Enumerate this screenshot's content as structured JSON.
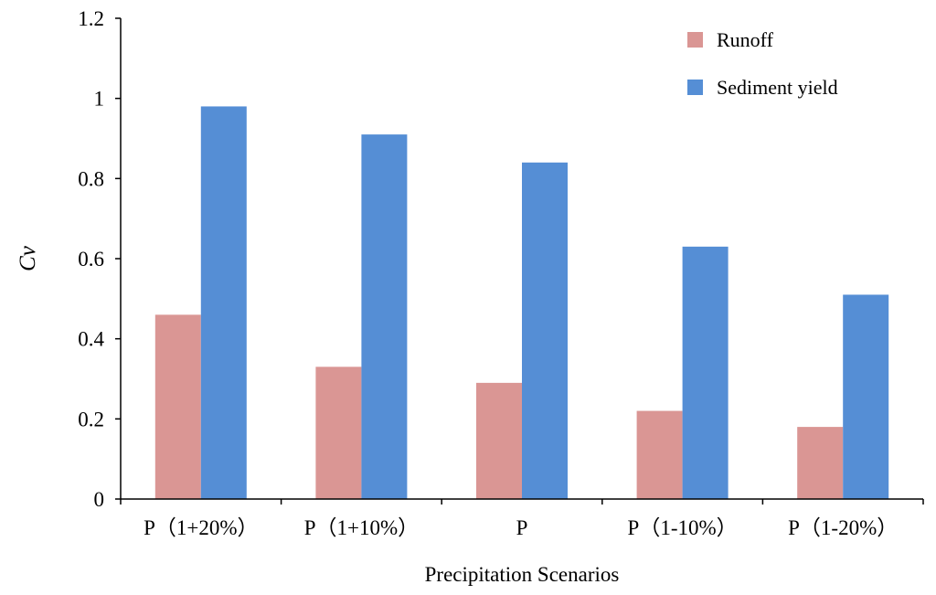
{
  "chart_data": {
    "type": "bar",
    "title": "",
    "xlabel": "Precipitation Scenarios",
    "ylabel": "Cv",
    "ylim": [
      0,
      1.2
    ],
    "yticks": [
      0,
      0.2,
      0.4,
      0.6,
      0.8,
      1,
      1.2
    ],
    "ytick_labels": [
      "0",
      "0.2",
      "0.4",
      "0.6",
      "0.8",
      "1",
      "1.2"
    ],
    "categories": [
      "P（1+20%）",
      "P（1+10%）",
      "P",
      "P（1-10%）",
      "P（1-20%）"
    ],
    "series": [
      {
        "name": "Runoff",
        "color": "#da9694",
        "values": [
          0.46,
          0.33,
          0.29,
          0.22,
          0.18
        ]
      },
      {
        "name": "Sediment yield",
        "color": "#558ed5",
        "values": [
          0.98,
          0.91,
          0.84,
          0.63,
          0.51
        ]
      }
    ],
    "legend_position": "top-right",
    "grid": false
  }
}
